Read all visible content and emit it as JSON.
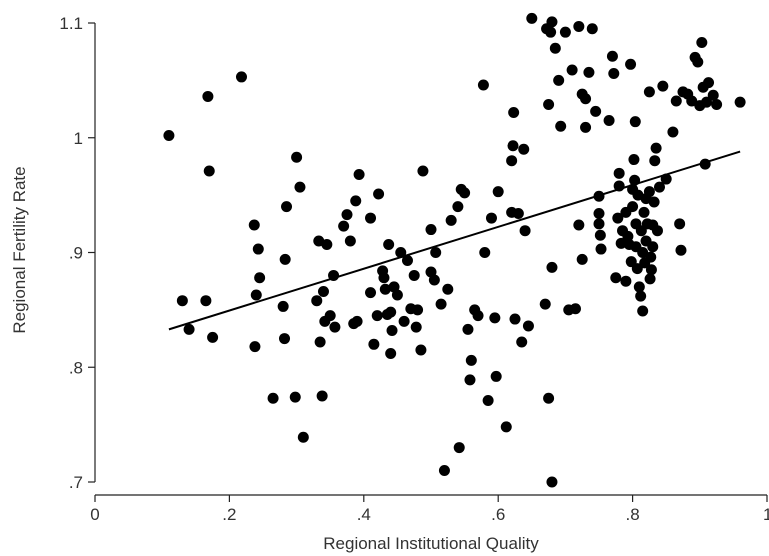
{
  "colors": {
    "axis": "#222222",
    "points": "#000000",
    "fit_line": "#000000",
    "text": "#333333"
  },
  "chart_data": {
    "type": "scatter",
    "title": "",
    "xlabel": "Regional Institutional Quality",
    "ylabel": "Regional Fertility Rate",
    "xlim": [
      0,
      1
    ],
    "ylim": [
      0.7,
      1.1
    ],
    "grid": false,
    "x_ticks": [
      {
        "value": 0,
        "label": "0"
      },
      {
        "value": 0.2,
        "label": ".2"
      },
      {
        "value": 0.4,
        "label": ".4"
      },
      {
        "value": 0.6,
        "label": ".6"
      },
      {
        "value": 0.8,
        "label": ".8"
      },
      {
        "value": 1,
        "label": "1"
      }
    ],
    "y_ticks": [
      {
        "value": 0.7,
        "label": ".7"
      },
      {
        "value": 0.8,
        "label": ".8"
      },
      {
        "value": 0.9,
        "label": ".9"
      },
      {
        "value": 1.0,
        "label": "1"
      },
      {
        "value": 1.1,
        "label": "1.1"
      }
    ],
    "fit_line": {
      "x": [
        0.11,
        0.96
      ],
      "y": [
        0.833,
        0.988
      ]
    },
    "points": [
      [
        0.11,
        1.002
      ],
      [
        0.13,
        0.858
      ],
      [
        0.14,
        0.833
      ],
      [
        0.165,
        0.858
      ],
      [
        0.168,
        1.036
      ],
      [
        0.17,
        0.971
      ],
      [
        0.175,
        0.826
      ],
      [
        0.218,
        1.053
      ],
      [
        0.237,
        0.924
      ],
      [
        0.238,
        0.818
      ],
      [
        0.24,
        0.863
      ],
      [
        0.243,
        0.903
      ],
      [
        0.245,
        0.878
      ],
      [
        0.265,
        0.773
      ],
      [
        0.28,
        0.853
      ],
      [
        0.282,
        0.825
      ],
      [
        0.283,
        0.894
      ],
      [
        0.285,
        0.94
      ],
      [
        0.298,
        0.774
      ],
      [
        0.3,
        0.983
      ],
      [
        0.305,
        0.957
      ],
      [
        0.31,
        0.739
      ],
      [
        0.33,
        0.858
      ],
      [
        0.333,
        0.91
      ],
      [
        0.335,
        0.822
      ],
      [
        0.338,
        0.775
      ],
      [
        0.34,
        0.866
      ],
      [
        0.342,
        0.84
      ],
      [
        0.345,
        0.907
      ],
      [
        0.35,
        0.845
      ],
      [
        0.355,
        0.88
      ],
      [
        0.357,
        0.835
      ],
      [
        0.37,
        0.923
      ],
      [
        0.375,
        0.933
      ],
      [
        0.38,
        0.91
      ],
      [
        0.385,
        0.838
      ],
      [
        0.388,
        0.945
      ],
      [
        0.39,
        0.84
      ],
      [
        0.393,
        0.968
      ],
      [
        0.41,
        0.93
      ],
      [
        0.41,
        0.865
      ],
      [
        0.415,
        0.82
      ],
      [
        0.42,
        0.845
      ],
      [
        0.422,
        0.951
      ],
      [
        0.428,
        0.884
      ],
      [
        0.43,
        0.878
      ],
      [
        0.432,
        0.868
      ],
      [
        0.435,
        0.846
      ],
      [
        0.437,
        0.907
      ],
      [
        0.44,
        0.812
      ],
      [
        0.44,
        0.848
      ],
      [
        0.442,
        0.832
      ],
      [
        0.445,
        0.87
      ],
      [
        0.45,
        0.863
      ],
      [
        0.455,
        0.9
      ],
      [
        0.46,
        0.84
      ],
      [
        0.465,
        0.893
      ],
      [
        0.47,
        0.851
      ],
      [
        0.475,
        0.88
      ],
      [
        0.478,
        0.835
      ],
      [
        0.48,
        0.85
      ],
      [
        0.485,
        0.815
      ],
      [
        0.488,
        0.971
      ],
      [
        0.5,
        0.92
      ],
      [
        0.5,
        0.883
      ],
      [
        0.505,
        0.876
      ],
      [
        0.507,
        0.9
      ],
      [
        0.515,
        0.855
      ],
      [
        0.52,
        0.71
      ],
      [
        0.525,
        0.868
      ],
      [
        0.53,
        0.928
      ],
      [
        0.54,
        0.94
      ],
      [
        0.542,
        0.73
      ],
      [
        0.545,
        0.955
      ],
      [
        0.55,
        0.952
      ],
      [
        0.555,
        0.833
      ],
      [
        0.558,
        0.789
      ],
      [
        0.56,
        0.806
      ],
      [
        0.565,
        0.85
      ],
      [
        0.57,
        0.845
      ],
      [
        0.578,
        1.046
      ],
      [
        0.58,
        0.9
      ],
      [
        0.585,
        0.771
      ],
      [
        0.59,
        0.93
      ],
      [
        0.595,
        0.843
      ],
      [
        0.597,
        0.792
      ],
      [
        0.6,
        0.953
      ],
      [
        0.612,
        0.748
      ],
      [
        0.62,
        0.935
      ],
      [
        0.62,
        0.98
      ],
      [
        0.622,
        0.993
      ],
      [
        0.623,
        1.022
      ],
      [
        0.625,
        0.842
      ],
      [
        0.63,
        0.934
      ],
      [
        0.635,
        0.822
      ],
      [
        0.638,
        0.99
      ],
      [
        0.64,
        0.919
      ],
      [
        0.645,
        0.836
      ],
      [
        0.65,
        1.104
      ],
      [
        0.67,
        0.855
      ],
      [
        0.672,
        1.095
      ],
      [
        0.675,
        0.773
      ],
      [
        0.675,
        1.029
      ],
      [
        0.678,
        1.092
      ],
      [
        0.68,
        1.101
      ],
      [
        0.68,
        0.7
      ],
      [
        0.68,
        0.887
      ],
      [
        0.685,
        1.078
      ],
      [
        0.69,
        1.05
      ],
      [
        0.693,
        1.01
      ],
      [
        0.7,
        1.092
      ],
      [
        0.705,
        0.85
      ],
      [
        0.71,
        1.059
      ],
      [
        0.715,
        0.851
      ],
      [
        0.72,
        1.097
      ],
      [
        0.72,
        0.924
      ],
      [
        0.725,
        1.038
      ],
      [
        0.725,
        0.894
      ],
      [
        0.73,
        1.034
      ],
      [
        0.73,
        1.009
      ],
      [
        0.735,
        1.057
      ],
      [
        0.74,
        1.095
      ],
      [
        0.745,
        1.023
      ],
      [
        0.75,
        0.949
      ],
      [
        0.75,
        0.934
      ],
      [
        0.75,
        0.925
      ],
      [
        0.752,
        0.915
      ],
      [
        0.753,
        0.903
      ],
      [
        0.765,
        1.015
      ],
      [
        0.77,
        1.071
      ],
      [
        0.772,
        1.056
      ],
      [
        0.775,
        0.878
      ],
      [
        0.778,
        0.93
      ],
      [
        0.78,
        0.958
      ],
      [
        0.78,
        0.969
      ],
      [
        0.783,
        0.908
      ],
      [
        0.785,
        0.919
      ],
      [
        0.79,
        0.875
      ],
      [
        0.79,
        0.935
      ],
      [
        0.793,
        0.914
      ],
      [
        0.795,
        0.907
      ],
      [
        0.797,
        1.064
      ],
      [
        0.798,
        0.892
      ],
      [
        0.8,
        0.94
      ],
      [
        0.8,
        0.955
      ],
      [
        0.802,
        0.981
      ],
      [
        0.803,
        0.963
      ],
      [
        0.804,
        1.014
      ],
      [
        0.805,
        0.925
      ],
      [
        0.805,
        0.905
      ],
      [
        0.807,
        0.886
      ],
      [
        0.808,
        0.95
      ],
      [
        0.81,
        0.87
      ],
      [
        0.812,
        0.862
      ],
      [
        0.813,
        0.919
      ],
      [
        0.815,
        0.849
      ],
      [
        0.815,
        0.9
      ],
      [
        0.817,
        0.935
      ],
      [
        0.818,
        0.891
      ],
      [
        0.82,
        0.947
      ],
      [
        0.82,
        0.91
      ],
      [
        0.822,
        0.925
      ],
      [
        0.825,
        1.04
      ],
      [
        0.825,
        0.953
      ],
      [
        0.826,
        0.877
      ],
      [
        0.827,
        0.896
      ],
      [
        0.828,
        0.885
      ],
      [
        0.83,
        0.924
      ],
      [
        0.83,
        0.905
      ],
      [
        0.832,
        0.944
      ],
      [
        0.833,
        0.98
      ],
      [
        0.835,
        0.991
      ],
      [
        0.837,
        0.919
      ],
      [
        0.84,
        0.957
      ],
      [
        0.845,
        1.045
      ],
      [
        0.85,
        0.964
      ],
      [
        0.86,
        1.005
      ],
      [
        0.865,
        1.032
      ],
      [
        0.87,
        0.925
      ],
      [
        0.872,
        0.902
      ],
      [
        0.875,
        1.04
      ],
      [
        0.882,
        1.038
      ],
      [
        0.888,
        1.032
      ],
      [
        0.893,
        1.07
      ],
      [
        0.897,
        1.066
      ],
      [
        0.9,
        1.028
      ],
      [
        0.903,
        1.083
      ],
      [
        0.905,
        1.044
      ],
      [
        0.908,
        0.977
      ],
      [
        0.91,
        1.031
      ],
      [
        0.913,
        1.048
      ],
      [
        0.92,
        1.037
      ],
      [
        0.925,
        1.029
      ],
      [
        0.96,
        1.031
      ]
    ]
  }
}
